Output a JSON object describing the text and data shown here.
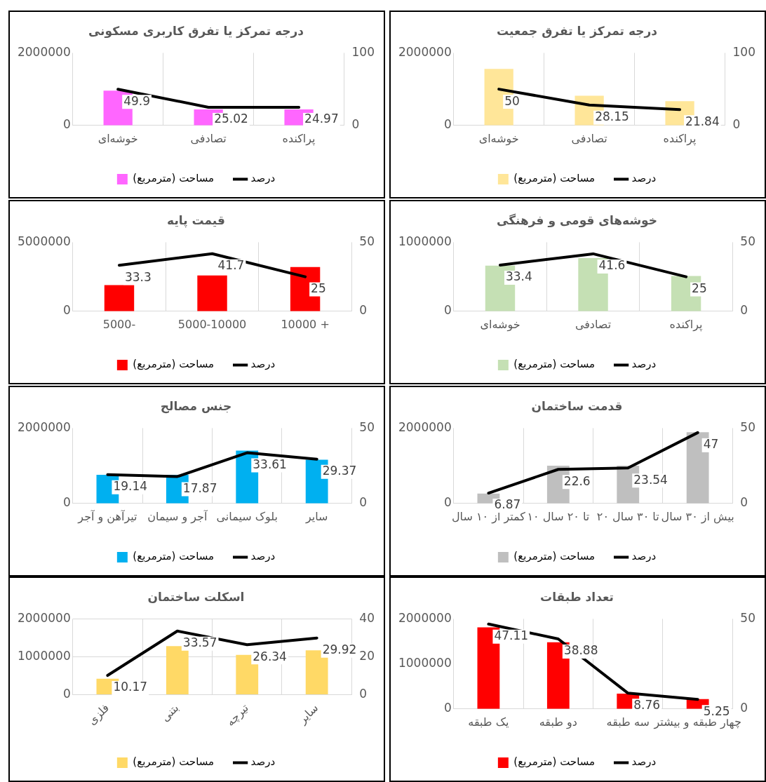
{
  "chart_data": [
    {
      "type": "bar",
      "title": "درجه تمرکز یا تفرق کاربری مسکونی",
      "categories": [
        "خوشه‌ای",
        "تصادفی",
        "پراکنده"
      ],
      "series": [
        {
          "name": "مساحت (مترمربع)",
          "color": "#ff66ff",
          "values": [
            960000,
            440000,
            440000
          ]
        },
        {
          "name": "درصد",
          "type": "line",
          "axis": "y2",
          "color": "#000000",
          "values": [
            49.9,
            25.02,
            24.97
          ],
          "value_labels": [
            "49.9",
            "25.02",
            "24.97"
          ]
        }
      ],
      "ylim": [
        0,
        2000000
      ],
      "yticks": [
        0,
        2000000
      ],
      "y2lim": [
        0,
        100
      ],
      "y2ticks": [
        0,
        100
      ],
      "grid": "x",
      "legend": "bottom",
      "marker": "none"
    },
    {
      "type": "bar",
      "title": "درجه تمرکز یا تفرق جمعیت",
      "categories": [
        "خوشه‌ای",
        "تصادفی",
        "پراکنده"
      ],
      "series": [
        {
          "name": "مساحت (مترمربع)",
          "color": "#ffe699",
          "values": [
            1560000,
            820000,
            670000
          ]
        },
        {
          "name": "درصد",
          "type": "line",
          "axis": "y2",
          "color": "#000000",
          "values": [
            50,
            28.15,
            21.84
          ],
          "value_labels": [
            "50",
            "28.15",
            "21.84"
          ]
        }
      ],
      "ylim": [
        0,
        2000000
      ],
      "yticks": [
        0,
        2000000
      ],
      "y2lim": [
        0,
        100
      ],
      "y2ticks": [
        0,
        100
      ],
      "grid": "x",
      "legend": "bottom",
      "marker": "none"
    },
    {
      "type": "bar",
      "title": "قیمت پایه",
      "categories": [
        "5000-",
        "5000-10000",
        "10000 +"
      ],
      "series": [
        {
          "name": "مساحت (مترمربع)",
          "color": "#ff0000",
          "values": [
            1900000,
            2600000,
            3200000
          ]
        },
        {
          "name": "درصد",
          "type": "line",
          "axis": "y2",
          "color": "#000000",
          "values": [
            33.3,
            41.7,
            25
          ],
          "value_labels": [
            "33.3",
            "41.7",
            "25"
          ]
        }
      ],
      "ylim": [
        0,
        5000000
      ],
      "yticks": [
        0,
        5000000
      ],
      "y2lim": [
        0,
        50
      ],
      "y2ticks": [
        0,
        50
      ],
      "grid": "x",
      "legend": "bottom",
      "marker": "none"
    },
    {
      "type": "bar",
      "title": "خوشه‌های قومی و فرهنگی",
      "categories": [
        "خوشه‌ای",
        "تصادفی",
        "پراکنده"
      ],
      "series": [
        {
          "name": "مساحت (مترمربع)",
          "color": "#c5e0b4",
          "values": [
            660000,
            770000,
            510000
          ]
        },
        {
          "name": "درصد",
          "type": "line",
          "axis": "y2",
          "color": "#000000",
          "values": [
            33.4,
            41.6,
            25
          ],
          "value_labels": [
            "33.4",
            "41.6",
            "25"
          ]
        }
      ],
      "ylim": [
        0,
        1000000
      ],
      "yticks": [
        0,
        1000000
      ],
      "y2lim": [
        0,
        50
      ],
      "y2ticks": [
        0,
        50
      ],
      "grid": "x",
      "legend": "bottom",
      "marker": "none"
    },
    {
      "type": "bar",
      "title": "جنس مصالح",
      "categories": [
        "تیرآهن و آجر",
        "آجر و سیمان",
        "بلوک سیمانی",
        "سایر"
      ],
      "series": [
        {
          "name": "مساحت (مترمربع)",
          "color": "#00b0f0",
          "values": [
            760000,
            760000,
            1400000,
            1160000
          ]
        },
        {
          "name": "درصد",
          "type": "line",
          "axis": "y2",
          "color": "#000000",
          "values": [
            19.14,
            17.87,
            33.61,
            29.37
          ],
          "value_labels": [
            "19.14",
            "17.87",
            "33.61",
            "29.37"
          ]
        }
      ],
      "ylim": [
        0,
        2000000
      ],
      "yticks": [
        0,
        2000000
      ],
      "y2lim": [
        0,
        50
      ],
      "y2ticks": [
        0,
        50
      ],
      "grid": "x",
      "legend": "bottom",
      "marker": "none"
    },
    {
      "type": "bar",
      "title": "قدمت ساختمان",
      "categories": [
        "کمتر از ۱۰ سال",
        "۱۰ تا ۲۰ سال",
        "۲۰ تا ۳۰ سال",
        "بیش از ۳۰ سال"
      ],
      "series": [
        {
          "name": "مساحت (مترمربع)",
          "color": "#bfbfbf",
          "values": [
            260000,
            1000000,
            1000000,
            1890000
          ]
        },
        {
          "name": "درصد",
          "type": "line",
          "axis": "y2",
          "color": "#000000",
          "values": [
            6.87,
            22.6,
            23.54,
            47
          ],
          "value_labels": [
            "6.87",
            "22.6",
            "23.54",
            "47"
          ]
        }
      ],
      "ylim": [
        0,
        2000000
      ],
      "yticks": [
        0,
        2000000
      ],
      "y2lim": [
        0,
        50
      ],
      "y2ticks": [
        0,
        50
      ],
      "grid": "x",
      "legend": "bottom",
      "marker": "none"
    },
    {
      "type": "bar",
      "title": "اسکلت ساختمان",
      "categories": [
        "فلزی",
        "بتنی",
        "تیرچه",
        "سایر"
      ],
      "series": [
        {
          "name": "مساحت (مترمربع)",
          "color": "#ffd966",
          "values": [
            420000,
            1280000,
            1050000,
            1170000
          ]
        },
        {
          "name": "درصد",
          "type": "line",
          "axis": "y2",
          "color": "#000000",
          "values": [
            10.17,
            33.57,
            26.34,
            29.92
          ],
          "value_labels": [
            "10.17",
            "33.57",
            "26.34",
            "29.92"
          ]
        }
      ],
      "ylim": [
        0,
        2000000
      ],
      "yticks": [
        0,
        1000000,
        2000000
      ],
      "y2lim": [
        0,
        40
      ],
      "y2ticks": [
        0,
        20,
        40
      ],
      "grid": true,
      "legend": "bottom",
      "marker": "none"
    },
    {
      "type": "bar",
      "title": "تعداد طبقات",
      "categories": [
        "یک طبقه",
        "دو طبقه",
        "سه طبقه",
        "چهار طبقه و بیشتر"
      ],
      "series": [
        {
          "name": "مساحت (مترمربع)",
          "color": "#ff0000",
          "values": [
            1810000,
            1480000,
            340000,
            220000
          ]
        },
        {
          "name": "درصد",
          "type": "line",
          "axis": "y2",
          "color": "#000000",
          "values": [
            47.11,
            38.88,
            8.76,
            5.25
          ],
          "value_labels": [
            "47.11",
            "38.88",
            "8.76",
            "5.25"
          ]
        }
      ],
      "ylim": [
        0,
        2000000
      ],
      "yticks": [
        0,
        1000000,
        2000000
      ],
      "y2lim": [
        0,
        50
      ],
      "y2ticks": [
        0,
        50
      ],
      "grid": "x",
      "legend": "bottom",
      "marker": "none"
    }
  ]
}
